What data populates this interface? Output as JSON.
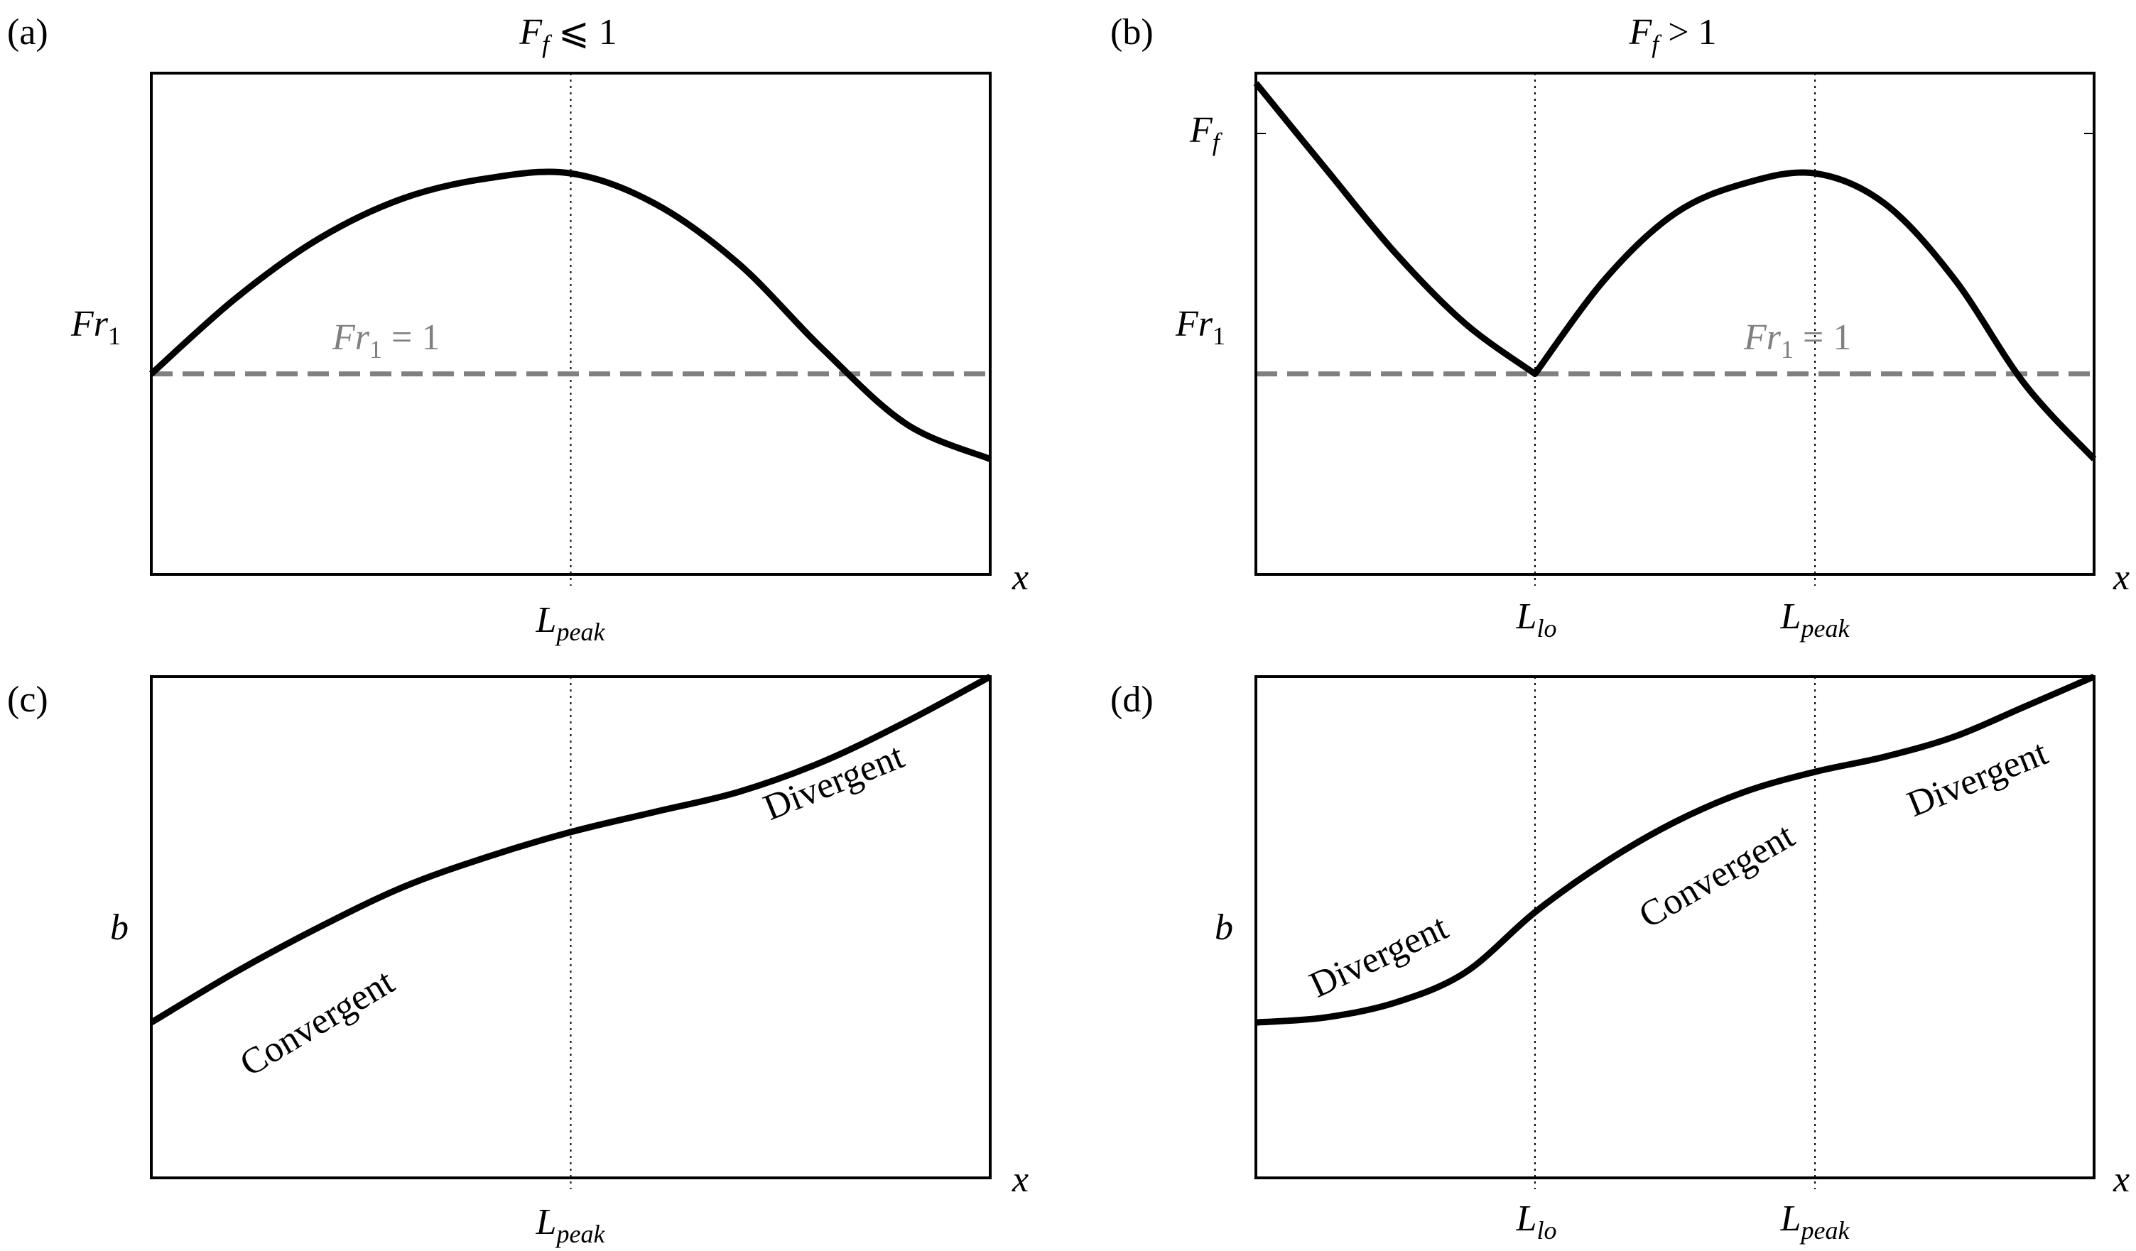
{
  "figure": {
    "panels": {
      "a": {
        "tag": "(a)",
        "title": {
          "main": "F",
          "sub": "f",
          "rest": " ⩽ 1"
        },
        "ylabel": {
          "main": "Fr",
          "sub": "1"
        },
        "xlabel": "x",
        "annotation": {
          "main": "Fr",
          "sub": "1",
          "rest": " = 1"
        },
        "ticks": [
          {
            "main": "L",
            "sub": "peak"
          }
        ]
      },
      "b": {
        "tag": "(b)",
        "title": {
          "main": "F",
          "sub": "f",
          "rest": " > 1"
        },
        "ylabel": {
          "main": "Fr",
          "sub": "1"
        },
        "ytick": {
          "main": "F",
          "sub": "f"
        },
        "xlabel": "x",
        "annotation": {
          "main": "Fr",
          "sub": "1",
          "rest": " = 1"
        },
        "ticks": [
          {
            "main": "L",
            "sub": "lo"
          },
          {
            "main": "L",
            "sub": "peak"
          }
        ]
      },
      "c": {
        "tag": "(c)",
        "ylabel": "b",
        "xlabel": "x",
        "regions": [
          "Convergent",
          "Divergent"
        ],
        "ticks": [
          {
            "main": "L",
            "sub": "peak"
          }
        ]
      },
      "d": {
        "tag": "(d)",
        "ylabel": "b",
        "xlabel": "x",
        "regions": [
          "Divergent",
          "Convergent",
          "Divergent"
        ],
        "ticks": [
          {
            "main": "L",
            "sub": "lo"
          },
          {
            "main": "L",
            "sub": "peak"
          }
        ]
      }
    }
  },
  "chart_data": [
    {
      "panel": "a",
      "type": "line",
      "xlim": [
        0,
        1
      ],
      "ylim": [
        0,
        1
      ],
      "markers": {
        "L_peak": 0.5
      },
      "reference_line": {
        "y": 0.4,
        "style": "dashed",
        "color": "#808080"
      },
      "series": [
        {
          "name": "Fr1",
          "x": [
            0,
            0.1,
            0.2,
            0.3,
            0.4,
            0.5,
            0.6,
            0.7,
            0.8,
            0.9,
            1.0
          ],
          "y": [
            0.4,
            0.55,
            0.67,
            0.75,
            0.79,
            0.8,
            0.74,
            0.62,
            0.45,
            0.3,
            0.23
          ]
        }
      ]
    },
    {
      "panel": "b",
      "type": "line",
      "xlim": [
        0,
        1
      ],
      "ylim": [
        0,
        1
      ],
      "markers": {
        "L_lo": 0.333,
        "L_peak": 0.667,
        "F_f": 0.98
      },
      "reference_line": {
        "y": 0.4,
        "style": "dashed",
        "color": "#808080"
      },
      "series": [
        {
          "name": "Fr1",
          "x": [
            0,
            0.083,
            0.167,
            0.25,
            0.333,
            0.417,
            0.5,
            0.583,
            0.667,
            0.75,
            0.833,
            0.917,
            1.0
          ],
          "y": [
            0.98,
            0.81,
            0.64,
            0.5,
            0.4,
            0.59,
            0.72,
            0.78,
            0.8,
            0.74,
            0.59,
            0.38,
            0.23
          ]
        }
      ]
    },
    {
      "panel": "c",
      "type": "line",
      "xlim": [
        0,
        1
      ],
      "ylim": [
        0,
        1
      ],
      "markers": {
        "L_peak": 0.5
      },
      "series": [
        {
          "name": "b",
          "x": [
            0,
            0.1,
            0.2,
            0.3,
            0.4,
            0.5,
            0.6,
            0.7,
            0.8,
            0.9,
            1.0
          ],
          "y": [
            0.31,
            0.41,
            0.5,
            0.58,
            0.64,
            0.69,
            0.73,
            0.77,
            0.83,
            0.91,
            1.0
          ]
        }
      ]
    },
    {
      "panel": "d",
      "type": "line",
      "xlim": [
        0,
        1
      ],
      "ylim": [
        0,
        1
      ],
      "markers": {
        "L_lo": 0.333,
        "L_peak": 0.667
      },
      "series": [
        {
          "name": "b",
          "x": [
            0,
            0.083,
            0.167,
            0.25,
            0.333,
            0.417,
            0.5,
            0.583,
            0.667,
            0.75,
            0.833,
            0.917,
            1.0
          ],
          "y": [
            0.31,
            0.32,
            0.35,
            0.41,
            0.53,
            0.63,
            0.71,
            0.77,
            0.81,
            0.84,
            0.88,
            0.94,
            1.0
          ]
        }
      ]
    }
  ]
}
